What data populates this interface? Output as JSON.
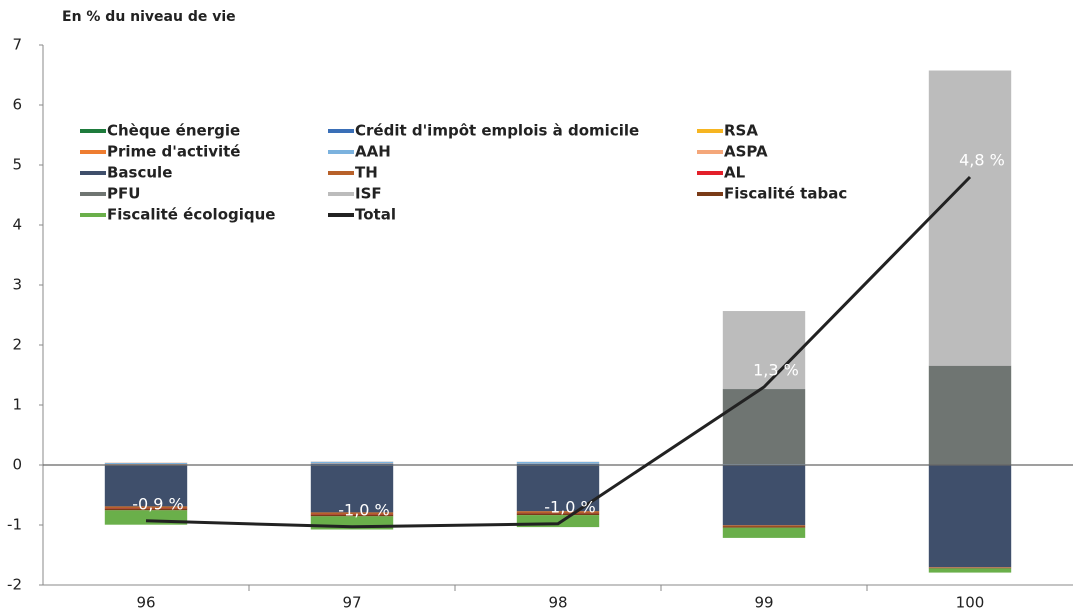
{
  "chart_data": {
    "type": "bar",
    "stacked": true,
    "ylabel": "En % du niveau de vie",
    "categories": [
      "96",
      "97",
      "98",
      "99",
      "100"
    ],
    "ylim": [
      -2,
      7
    ],
    "yticks": [
      -2,
      -1,
      0,
      1,
      2,
      3,
      4,
      5,
      6,
      7
    ],
    "grid": false,
    "series": [
      {
        "name": "Chèque énergie",
        "color": "#1e7b3c",
        "values": [
          -0.01,
          -0.01,
          -0.01,
          -0.005,
          -0.003
        ]
      },
      {
        "name": "Crédit d'impôt emplois à domicile",
        "color": "#3a6fb7",
        "values": [
          0.01,
          0.02,
          0.02,
          0.01,
          0.005
        ]
      },
      {
        "name": "RSA",
        "color": "#f6b521",
        "values": [
          0,
          0,
          0,
          0,
          0
        ]
      },
      {
        "name": "Prime d'activité",
        "color": "#ee7d31",
        "values": [
          0.005,
          0.005,
          0.003,
          0.001,
          0
        ]
      },
      {
        "name": "AAH",
        "color": "#7bb2de",
        "values": [
          0.02,
          0.03,
          0.03,
          0.005,
          0
        ]
      },
      {
        "name": "ASPA",
        "color": "#f4a77a",
        "values": [
          0.005,
          0.003,
          0.002,
          0,
          0
        ]
      },
      {
        "name": "Bascule",
        "color": "#3f4f6b",
        "values": [
          -0.68,
          -0.78,
          -0.76,
          -1.0,
          -1.7
        ]
      },
      {
        "name": "TH",
        "color": "#b8612a",
        "values": [
          -0.03,
          -0.03,
          -0.03,
          -0.02,
          -0.01
        ]
      },
      {
        "name": "AL",
        "color": "#e3202a",
        "values": [
          -0.005,
          -0.005,
          -0.005,
          0,
          0
        ]
      },
      {
        "name": "PFU",
        "color": "#6f7572",
        "values": [
          0,
          0,
          0,
          1.25,
          1.65
        ]
      },
      {
        "name": "ISF",
        "color": "#bcbcbc",
        "values": [
          0,
          0,
          0,
          1.3,
          4.92
        ]
      },
      {
        "name": "Fiscalité tabac",
        "color": "#7a3b17",
        "values": [
          -0.03,
          -0.03,
          -0.03,
          -0.02,
          -0.01
        ]
      },
      {
        "name": "Fiscalité écologique",
        "color": "#6aaf4a",
        "values": [
          -0.24,
          -0.22,
          -0.2,
          -0.17,
          -0.07
        ]
      }
    ],
    "total": {
      "name": "Total",
      "color": "#222222",
      "values": [
        -0.93,
        -1.03,
        -0.98,
        1.3,
        4.8
      ],
      "value_labels": [
        "-0,9 %",
        "-1,0 %",
        "-1,0 %",
        "1,3 %",
        "4,8 %"
      ]
    }
  }
}
